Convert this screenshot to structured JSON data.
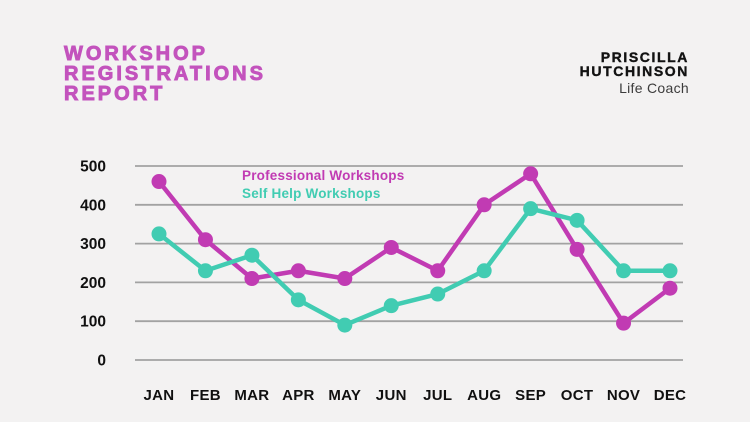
{
  "header": {
    "title": "WORKSHOP\nREGISTRATIONS\nREPORT",
    "title_color": "#c353bd",
    "brand_name": "PRISCILLA\nHUTCHINSON",
    "brand_subtitle": "Life Coach"
  },
  "chart_data": {
    "type": "line",
    "title": "Workshop Registrations Report",
    "categories": [
      "JAN",
      "FEB",
      "MAR",
      "APR",
      "MAY",
      "JUN",
      "JUL",
      "AUG",
      "SEP",
      "OCT",
      "NOV",
      "DEC"
    ],
    "series": [
      {
        "name": "Professional Workshops",
        "color": "#c13bb3",
        "values": [
          460,
          310,
          210,
          230,
          210,
          290,
          230,
          400,
          480,
          285,
          95,
          185
        ]
      },
      {
        "name": "Self Help Workshops",
        "color": "#41ccb2",
        "values": [
          325,
          230,
          270,
          155,
          90,
          140,
          170,
          230,
          390,
          360,
          230,
          230
        ]
      }
    ],
    "xlabel": "",
    "ylabel": "",
    "ylim": [
      0,
      500
    ],
    "yticks": [
      500,
      400,
      300,
      200,
      100,
      0
    ],
    "grid": true,
    "legend_position": "top-center",
    "colors": {
      "grid": "#a2a2a2",
      "axis_text": "#101010",
      "background": "#f3f2f2"
    }
  }
}
